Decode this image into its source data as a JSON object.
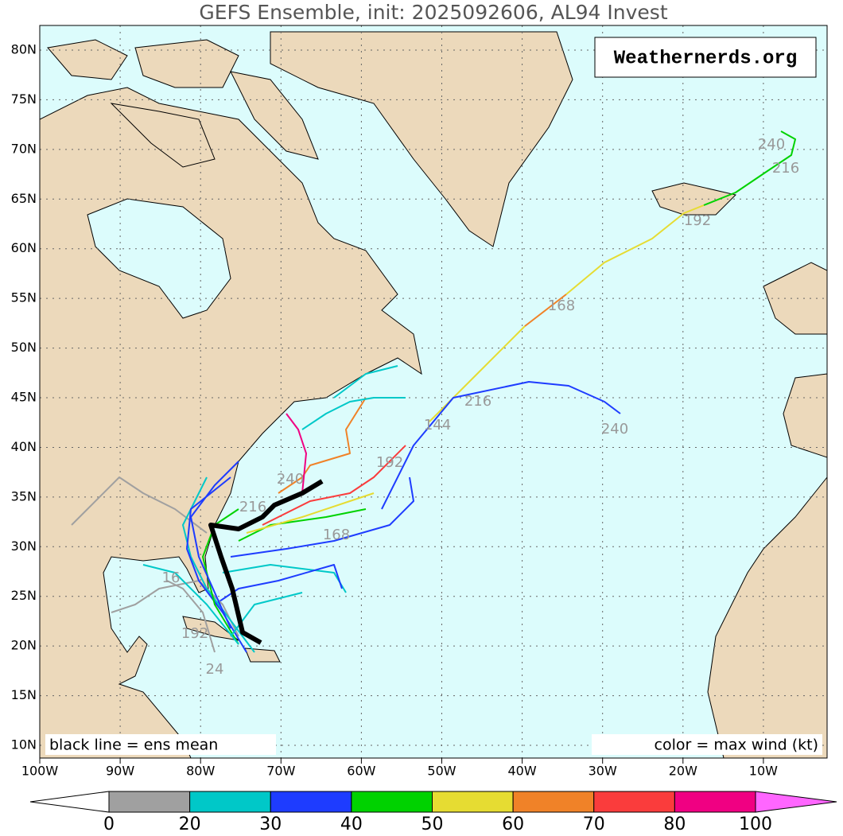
{
  "title": "GEFS Ensemble, init: 2025092606, AL94 Invest",
  "watermark": "Weathernerds.org",
  "lat_labels": [
    "80N",
    "75N",
    "70N",
    "65N",
    "60N",
    "55N",
    "50N",
    "45N",
    "40N",
    "35N",
    "30N",
    "25N",
    "20N",
    "15N",
    "10N"
  ],
  "lon_labels": [
    "100W",
    "90W",
    "80W",
    "70W",
    "60W",
    "50W",
    "40W",
    "30W",
    "20W",
    "10W"
  ],
  "notes": {
    "left": "black line = ens mean",
    "right": "color = max wind (kt)"
  },
  "colorbar": {
    "labels": [
      0,
      20,
      30,
      40,
      50,
      60,
      70,
      80,
      100
    ],
    "colors": [
      "#a0a0a0",
      "#00c8c8",
      "#1e3cff",
      "#00d200",
      "#e6dc32",
      "#f08228",
      "#fa3c3c",
      "#f00082"
    ]
  },
  "track_labels": [
    "240",
    "216",
    "192",
    "168",
    "216",
    "240",
    "144",
    "192",
    "240",
    "168",
    "216",
    "16",
    "192",
    "24"
  ]
}
